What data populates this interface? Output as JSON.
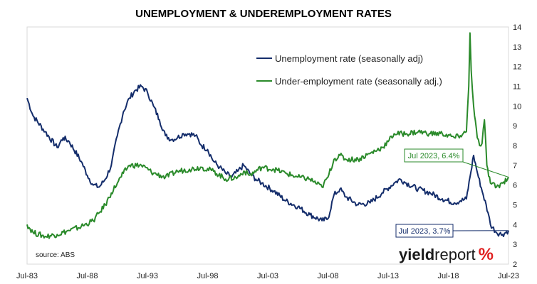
{
  "chart_data": {
    "type": "line",
    "title": "UNEMPLOYMENT & UNDEREMPLOYMENT RATES",
    "source": "source: ABS",
    "brand": {
      "part1": "yield",
      "part2": "report",
      "symbol": "%"
    },
    "x_ticks": [
      "Jul-83",
      "Jul-88",
      "Jul-93",
      "Jul-98",
      "Jul-03",
      "Jul-08",
      "Jul-13",
      "Jul-18",
      "Jul-23"
    ],
    "x_range": [
      1983.5,
      2023.5
    ],
    "y_ticks": [
      2,
      3,
      4,
      5,
      6,
      7,
      8,
      9,
      10,
      11,
      12,
      13,
      14
    ],
    "ylim": [
      2,
      14
    ],
    "y_axis_position": "right",
    "grid": false,
    "legend_placement": "top-center",
    "series": [
      {
        "name": "Unemployment rate (seasonally adj)",
        "color": "#142d6b",
        "points": [
          [
            1983.5,
            10.4
          ],
          [
            1984.0,
            9.5
          ],
          [
            1985.0,
            8.7
          ],
          [
            1986.0,
            7.9
          ],
          [
            1986.5,
            8.4
          ],
          [
            1987.0,
            8.2
          ],
          [
            1988.0,
            7.2
          ],
          [
            1988.5,
            6.5
          ],
          [
            1989.0,
            6.0
          ],
          [
            1989.5,
            5.9
          ],
          [
            1990.0,
            6.3
          ],
          [
            1990.5,
            7.0
          ],
          [
            1991.0,
            8.5
          ],
          [
            1991.5,
            9.7
          ],
          [
            1992.0,
            10.4
          ],
          [
            1992.5,
            10.8
          ],
          [
            1993.0,
            11.0
          ],
          [
            1993.5,
            10.7
          ],
          [
            1994.0,
            10.0
          ],
          [
            1994.5,
            9.3
          ],
          [
            1995.0,
            8.5
          ],
          [
            1995.5,
            8.3
          ],
          [
            1996.0,
            8.4
          ],
          [
            1996.5,
            8.6
          ],
          [
            1997.0,
            8.6
          ],
          [
            1997.5,
            8.5
          ],
          [
            1998.0,
            8.0
          ],
          [
            1998.5,
            7.8
          ],
          [
            1999.0,
            7.2
          ],
          [
            1999.5,
            6.9
          ],
          [
            2000.0,
            6.6
          ],
          [
            2000.5,
            6.4
          ],
          [
            2001.0,
            6.7
          ],
          [
            2001.5,
            7.0
          ],
          [
            2002.0,
            6.6
          ],
          [
            2002.5,
            6.3
          ],
          [
            2003.0,
            6.1
          ],
          [
            2004.0,
            5.7
          ],
          [
            2005.0,
            5.2
          ],
          [
            2006.0,
            4.9
          ],
          [
            2007.0,
            4.5
          ],
          [
            2008.0,
            4.2
          ],
          [
            2008.5,
            4.3
          ],
          [
            2009.0,
            5.5
          ],
          [
            2009.5,
            5.8
          ],
          [
            2010.0,
            5.4
          ],
          [
            2011.0,
            5.0
          ],
          [
            2012.0,
            5.1
          ],
          [
            2013.0,
            5.6
          ],
          [
            2014.0,
            6.1
          ],
          [
            2014.5,
            6.3
          ],
          [
            2015.0,
            6.1
          ],
          [
            2016.0,
            5.8
          ],
          [
            2017.0,
            5.6
          ],
          [
            2018.0,
            5.3
          ],
          [
            2019.0,
            5.1
          ],
          [
            2019.5,
            5.2
          ],
          [
            2020.0,
            5.3
          ],
          [
            2020.3,
            6.4
          ],
          [
            2020.6,
            7.5
          ],
          [
            2021.0,
            6.4
          ],
          [
            2021.4,
            5.5
          ],
          [
            2021.8,
            4.6
          ],
          [
            2022.0,
            4.0
          ],
          [
            2022.5,
            3.6
          ],
          [
            2023.0,
            3.5
          ],
          [
            2023.5,
            3.7
          ]
        ]
      },
      {
        "name": "Under-employment rate (seasonally adj.)",
        "color": "#2a8a2a",
        "points": [
          [
            1983.5,
            4.0
          ],
          [
            1984.0,
            3.6
          ],
          [
            1985.0,
            3.4
          ],
          [
            1986.0,
            3.5
          ],
          [
            1987.0,
            3.7
          ],
          [
            1988.0,
            3.9
          ],
          [
            1989.0,
            4.2
          ],
          [
            1989.5,
            4.6
          ],
          [
            1990.0,
            5.0
          ],
          [
            1990.5,
            5.6
          ],
          [
            1991.0,
            6.1
          ],
          [
            1991.5,
            6.6
          ],
          [
            1992.0,
            7.0
          ],
          [
            1993.0,
            7.0
          ],
          [
            1994.0,
            6.6
          ],
          [
            1995.0,
            6.4
          ],
          [
            1996.0,
            6.7
          ],
          [
            1997.0,
            6.8
          ],
          [
            1998.0,
            6.9
          ],
          [
            1999.0,
            6.7
          ],
          [
            2000.0,
            6.3
          ],
          [
            2001.0,
            6.4
          ],
          [
            2001.5,
            6.7
          ],
          [
            2002.0,
            6.5
          ],
          [
            2003.0,
            6.9
          ],
          [
            2004.0,
            6.8
          ],
          [
            2005.0,
            6.6
          ],
          [
            2006.0,
            6.4
          ],
          [
            2007.0,
            6.3
          ],
          [
            2008.0,
            5.9
          ],
          [
            2008.5,
            6.4
          ],
          [
            2009.0,
            7.3
          ],
          [
            2009.5,
            7.5
          ],
          [
            2010.0,
            7.3
          ],
          [
            2011.0,
            7.3
          ],
          [
            2012.0,
            7.6
          ],
          [
            2013.0,
            7.9
          ],
          [
            2013.5,
            8.2
          ],
          [
            2014.0,
            8.6
          ],
          [
            2015.0,
            8.6
          ],
          [
            2016.0,
            8.7
          ],
          [
            2017.0,
            8.6
          ],
          [
            2018.0,
            8.6
          ],
          [
            2019.0,
            8.4
          ],
          [
            2019.5,
            8.5
          ],
          [
            2020.0,
            8.7
          ],
          [
            2020.2,
            11.0
          ],
          [
            2020.3,
            13.7
          ],
          [
            2020.4,
            11.8
          ],
          [
            2020.6,
            10.0
          ],
          [
            2020.9,
            8.4
          ],
          [
            2021.1,
            8.0
          ],
          [
            2021.3,
            8.1
          ],
          [
            2021.5,
            9.3
          ],
          [
            2021.7,
            7.0
          ],
          [
            2022.0,
            6.1
          ],
          [
            2022.5,
            5.9
          ],
          [
            2023.0,
            6.1
          ],
          [
            2023.5,
            6.4
          ]
        ]
      }
    ],
    "annotations": [
      {
        "text": "Jul 2023, 6.4%",
        "series_index": 1,
        "x": 2023.5,
        "y": 6.4
      },
      {
        "text": "Jul 2023, 3.7%",
        "series_index": 0,
        "x": 2023.5,
        "y": 3.7
      }
    ]
  }
}
